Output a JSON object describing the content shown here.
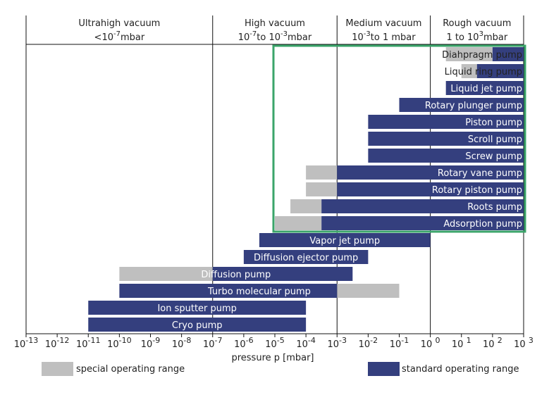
{
  "chart_data": {
    "type": "bar",
    "orientation": "horizontal",
    "scale": "log10",
    "xlabel": "pressure p [mbar]",
    "x_ticks": [
      {
        "value": -13,
        "label": "10-13"
      },
      {
        "value": -12,
        "label": "10-12"
      },
      {
        "value": -11,
        "label": "10-11"
      },
      {
        "value": -10,
        "label": "10-10"
      },
      {
        "value": -9,
        "label": "10-9"
      },
      {
        "value": -8,
        "label": "10-8"
      },
      {
        "value": -7,
        "label": "10-7"
      },
      {
        "value": -6,
        "label": "10-6"
      },
      {
        "value": -5,
        "label": "10-5"
      },
      {
        "value": -4,
        "label": "10-4"
      },
      {
        "value": -3,
        "label": "10-3"
      },
      {
        "value": -2,
        "label": "10-2"
      },
      {
        "value": -1,
        "label": "10-1"
      },
      {
        "value": 0,
        "label": "10 0"
      },
      {
        "value": 1,
        "label": "10 1"
      },
      {
        "value": 2,
        "label": "10 2"
      },
      {
        "value": 3,
        "label": "10 3"
      }
    ],
    "pressure_ranges": [
      {
        "name": "Ultrahigh vacuum",
        "range_label": "<10-7mbar",
        "from": -13,
        "to": -7
      },
      {
        "name": "High vacuum",
        "range_label": "10-7to 10-3mbar",
        "from": -7,
        "to": -3
      },
      {
        "name": "Medium vacuum",
        "range_label": "10-3to 1 mbar",
        "from": -3,
        "to": 0
      },
      {
        "name": "Rough vacuum",
        "range_label": "1 to 103mbar",
        "from": 0,
        "to": 3
      }
    ],
    "highlight_box": {
      "from_pump": "Diahpragm pump",
      "to_pump": "Adsorption pump",
      "color": "#3aa46a"
    },
    "pumps": [
      {
        "name": "Diahpragm pump",
        "standard": [
          2,
          3
        ],
        "special": [
          0.5,
          2
        ]
      },
      {
        "name": "Liquid ring pump",
        "standard": [
          1.5,
          3
        ],
        "special": [
          1,
          1.5
        ]
      },
      {
        "name": "Liquid jet pump",
        "standard": [
          0.5,
          3
        ],
        "special": null
      },
      {
        "name": "Rotary plunger pump",
        "standard": [
          -1,
          3
        ],
        "special": null
      },
      {
        "name": "Piston pump",
        "standard": [
          -2,
          3
        ],
        "special": null
      },
      {
        "name": "Scroll pump",
        "standard": [
          -2,
          3
        ],
        "special": null
      },
      {
        "name": "Screw pump",
        "standard": [
          -2,
          3
        ],
        "special": null
      },
      {
        "name": "Rotary vane pump",
        "standard": [
          -3,
          3
        ],
        "special": [
          -4,
          -3
        ]
      },
      {
        "name": "Rotary piston pump",
        "standard": [
          -3,
          3
        ],
        "special": [
          -4,
          -3
        ]
      },
      {
        "name": "Roots pump",
        "standard": [
          -3.5,
          3
        ],
        "special": [
          -4.5,
          -3.5
        ]
      },
      {
        "name": "Adsorption pump",
        "standard": [
          -3.5,
          3
        ],
        "special": [
          -5,
          -3.5
        ]
      },
      {
        "name": "Vapor jet pump",
        "standard": [
          -5.5,
          0
        ],
        "special": null
      },
      {
        "name": "Diffusion ejector pump",
        "standard": [
          -6,
          -2
        ],
        "special": null
      },
      {
        "name": "Diffusion pump",
        "standard": [
          -7,
          -2.5
        ],
        "special": [
          -10,
          -7
        ]
      },
      {
        "name": "Turbo molecular pump",
        "standard": [
          -10,
          -3
        ],
        "special": [
          -3,
          -1
        ]
      },
      {
        "name": "Ion sputter pump",
        "standard": [
          -11,
          -4
        ],
        "special": null
      },
      {
        "name": "Cryo pump",
        "standard": [
          -11,
          -4
        ],
        "special": null
      }
    ],
    "legend": [
      {
        "key": "special",
        "label": "special operating range",
        "color": "#bfbfbf"
      },
      {
        "key": "standard",
        "label": "standard operating range",
        "color": "#343f7e"
      }
    ],
    "colors": {
      "standard": "#343f7e",
      "special": "#bfbfbf",
      "axis": "#111111"
    }
  }
}
